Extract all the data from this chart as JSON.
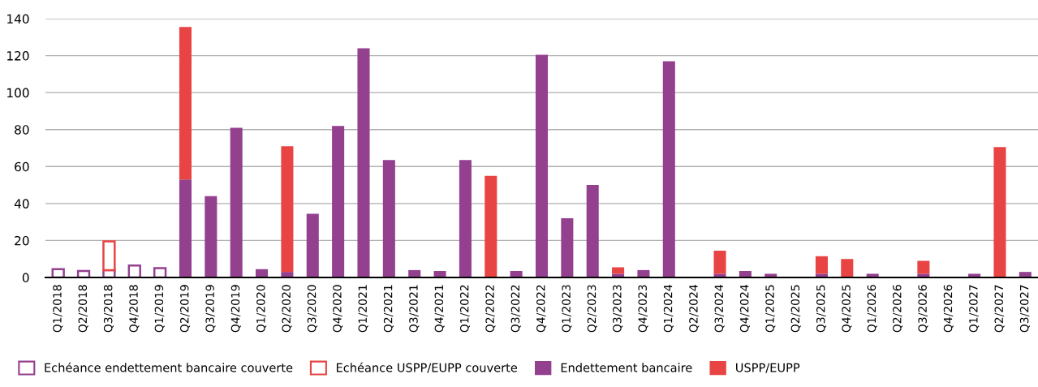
{
  "chart_data": {
    "type": "bar",
    "stacked": true,
    "categories": [
      "Q1/2018",
      "Q2/2018",
      "Q3/2018",
      "Q4/2018",
      "Q1/2019",
      "Q2/2019",
      "Q3/2019",
      "Q4/2019",
      "Q1/2020",
      "Q2/2020",
      "Q3/2020",
      "Q4/2020",
      "Q1/2021",
      "Q2/2021",
      "Q3/2021",
      "Q4/2021",
      "Q1/2022",
      "Q2/2022",
      "Q3/2022",
      "Q4/2022",
      "Q1/2023",
      "Q2/2023",
      "Q3/2023",
      "Q4/2023",
      "Q1/2024",
      "Q2/2024",
      "Q3/2024",
      "Q4/2024",
      "Q1/2025",
      "Q2/2025",
      "Q3/2025",
      "Q4/2025",
      "Q1/2026",
      "Q2/2026",
      "Q3/2026",
      "Q4/2026",
      "Q1/2027",
      "Q2/2027",
      "Q3/2027"
    ],
    "series": [
      {
        "name": "Echéance endettement bancaire couverte",
        "color": "#93408f",
        "line_style": "solid",
        "values": [
          4.5,
          3.5,
          4,
          6.5,
          5,
          0,
          0,
          0,
          0,
          0,
          0,
          0,
          0,
          0,
          0,
          0,
          0,
          0,
          0,
          0,
          0,
          0,
          0,
          0,
          0,
          0,
          0,
          0,
          0,
          0,
          0,
          0,
          0,
          0,
          0,
          0,
          0,
          0,
          0
        ]
      },
      {
        "name": "Echéance USPP/EUPP couverte",
        "color": "#e84444",
        "line_style": "solid",
        "values": [
          0,
          0,
          15.5,
          0,
          0,
          0,
          0,
          0,
          0,
          0,
          0,
          0,
          0,
          0,
          0,
          0,
          0,
          0,
          0,
          0,
          0,
          0,
          0,
          0,
          0,
          0,
          0,
          0,
          0,
          0,
          0,
          0,
          0,
          0,
          0,
          0,
          0,
          0,
          0
        ]
      },
      {
        "name": "Endettement bancaire",
        "color": "#93408f",
        "values": [
          0,
          0,
          0,
          0,
          0,
          53,
          44,
          81,
          4.5,
          3,
          34.5,
          82,
          124,
          63.5,
          4,
          3.5,
          63.5,
          0,
          3.5,
          120.5,
          32,
          50,
          2,
          4,
          117,
          0,
          2,
          3.5,
          2,
          0,
          2,
          0,
          2,
          0,
          2,
          0,
          2,
          0,
          3
        ]
      },
      {
        "name": "USPP/EUPP",
        "color": "#e84444",
        "values": [
          0,
          0,
          0,
          0,
          0,
          82.5,
          0,
          0,
          0,
          68,
          0,
          0,
          0,
          0,
          0,
          0,
          0,
          55,
          0,
          0,
          0,
          0,
          3.5,
          0,
          0,
          0,
          12.5,
          0,
          0,
          0,
          9.5,
          10,
          0,
          0,
          7,
          0,
          0,
          70.5,
          0
        ]
      }
    ],
    "ylim": [
      0,
      140
    ],
    "yticks": [
      0,
      20,
      40,
      60,
      80,
      100,
      120,
      140
    ],
    "grid": "y",
    "legend": "bottom left"
  }
}
